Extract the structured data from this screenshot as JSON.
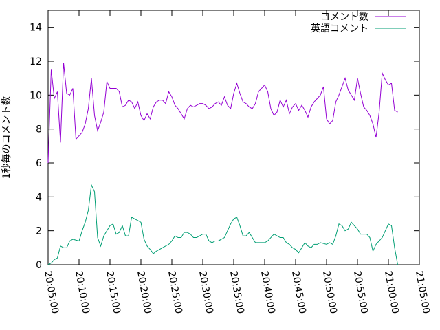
{
  "chart_data": {
    "type": "line",
    "y_label": "1秒毎のコメント数",
    "x": [
      "20:05:00",
      "20:05:30",
      "20:06:00",
      "20:06:30",
      "20:07:00",
      "20:07:30",
      "20:08:00",
      "20:08:30",
      "20:09:00",
      "20:09:30",
      "20:10:00",
      "20:10:30",
      "20:11:00",
      "20:11:30",
      "20:12:00",
      "20:12:30",
      "20:13:00",
      "20:13:30",
      "20:14:00",
      "20:14:30",
      "20:15:00",
      "20:15:30",
      "20:16:00",
      "20:16:30",
      "20:17:00",
      "20:17:30",
      "20:18:00",
      "20:18:30",
      "20:19:00",
      "20:19:30",
      "20:20:00",
      "20:20:30",
      "20:21:00",
      "20:21:30",
      "20:22:00",
      "20:22:30",
      "20:23:00",
      "20:23:30",
      "20:24:00",
      "20:24:30",
      "20:25:00",
      "20:25:30",
      "20:26:00",
      "20:26:30",
      "20:27:00",
      "20:27:30",
      "20:28:00",
      "20:28:30",
      "20:29:00",
      "20:29:30",
      "20:30:00",
      "20:30:30",
      "20:31:00",
      "20:31:30",
      "20:32:00",
      "20:32:30",
      "20:33:00",
      "20:33:30",
      "20:34:00",
      "20:34:30",
      "20:35:00",
      "20:35:30",
      "20:36:00",
      "20:36:30",
      "20:37:00",
      "20:37:30",
      "20:38:00",
      "20:38:30",
      "20:39:00",
      "20:39:30",
      "20:40:00",
      "20:40:30",
      "20:41:00",
      "20:41:30",
      "20:42:00",
      "20:42:30",
      "20:43:00",
      "20:43:30",
      "20:44:00",
      "20:44:30",
      "20:45:00",
      "20:45:30",
      "20:46:00",
      "20:46:30",
      "20:47:00",
      "20:47:30",
      "20:48:00",
      "20:48:30",
      "20:49:00",
      "20:49:30",
      "20:50:00",
      "20:50:30",
      "20:51:00",
      "20:51:30",
      "20:52:00",
      "20:52:30",
      "20:53:00",
      "20:53:30",
      "20:54:00",
      "20:54:30",
      "20:55:00",
      "20:55:30",
      "20:56:00",
      "20:56:30",
      "20:57:00",
      "20:57:30",
      "20:58:00",
      "20:58:30",
      "20:59:00",
      "20:59:30",
      "21:00:00",
      "21:00:30",
      "21:01:00",
      "21:01:30"
    ],
    "series": [
      {
        "name": "コメント数",
        "color": "#9400d3",
        "values": [
          6.0,
          11.5,
          9.8,
          10.2,
          7.2,
          11.9,
          10.1,
          10.0,
          10.4,
          7.4,
          7.6,
          7.8,
          8.3,
          9.2,
          11.0,
          8.8,
          7.9,
          8.4,
          9.0,
          10.8,
          10.4,
          10.4,
          10.4,
          10.2,
          9.3,
          9.4,
          9.7,
          9.6,
          9.2,
          9.6,
          8.8,
          8.5,
          8.9,
          8.6,
          9.3,
          9.6,
          9.7,
          9.7,
          9.5,
          10.2,
          9.9,
          9.4,
          9.2,
          8.9,
          8.6,
          9.2,
          9.4,
          9.3,
          9.4,
          9.5,
          9.5,
          9.4,
          9.2,
          9.3,
          9.5,
          9.6,
          9.4,
          9.9,
          9.4,
          9.2,
          10.1,
          10.7,
          10.1,
          9.6,
          9.5,
          9.3,
          9.2,
          9.5,
          10.2,
          10.4,
          10.6,
          10.2,
          9.2,
          8.8,
          9.0,
          9.7,
          9.3,
          9.7,
          8.9,
          9.3,
          9.5,
          9.1,
          9.4,
          9.1,
          8.7,
          9.3,
          9.6,
          9.8,
          10.0,
          10.5,
          8.6,
          8.3,
          8.5,
          9.6,
          10.0,
          10.5,
          11.0,
          10.3,
          10.0,
          9.7,
          11.0,
          10.1,
          9.3,
          9.1,
          8.8,
          8.3,
          7.5,
          9.0,
          11.3,
          10.9,
          10.6,
          10.7,
          9.1,
          9.0
        ]
      },
      {
        "name": "英語コメント",
        "color": "#009e73",
        "values": [
          0.0,
          0.1,
          0.3,
          0.4,
          1.1,
          1.0,
          1.0,
          1.4,
          1.5,
          1.45,
          1.4,
          2.0,
          2.5,
          3.2,
          4.7,
          4.3,
          1.6,
          1.1,
          1.7,
          2.0,
          2.3,
          2.4,
          1.8,
          1.9,
          2.3,
          1.7,
          1.7,
          2.8,
          2.7,
          2.6,
          2.5,
          1.5,
          1.1,
          0.9,
          0.65,
          0.8,
          0.9,
          1.0,
          1.1,
          1.2,
          1.4,
          1.7,
          1.6,
          1.6,
          1.9,
          1.9,
          1.8,
          1.6,
          1.6,
          1.7,
          1.8,
          1.8,
          1.4,
          1.3,
          1.4,
          1.4,
          1.5,
          1.6,
          2.0,
          2.4,
          2.7,
          2.8,
          2.3,
          1.7,
          1.7,
          1.9,
          1.6,
          1.3,
          1.3,
          1.3,
          1.3,
          1.4,
          1.6,
          1.8,
          1.7,
          1.6,
          1.6,
          1.3,
          1.2,
          1.0,
          0.9,
          0.7,
          1.0,
          1.3,
          1.1,
          1.0,
          1.2,
          1.2,
          1.3,
          1.25,
          1.2,
          1.3,
          1.2,
          1.7,
          2.4,
          2.3,
          2.0,
          2.1,
          2.5,
          2.3,
          2.1,
          1.8,
          1.8,
          1.8,
          1.6,
          0.8,
          1.2,
          1.4,
          1.6,
          2.0,
          2.4,
          2.3,
          1.0,
          0.0
        ]
      }
    ],
    "xlim": [
      "20:05:00",
      "21:05:00"
    ],
    "xticks": [
      "20:05:00",
      "20:10:00",
      "20:15:00",
      "20:20:00",
      "20:25:00",
      "20:30:00",
      "20:35:00",
      "20:40:00",
      "20:45:00",
      "20:50:00",
      "20:55:00",
      "21:00:00",
      "21:05:00"
    ],
    "ylim": [
      0,
      15
    ],
    "yticks": [
      0,
      2,
      4,
      6,
      8,
      10,
      12,
      14
    ],
    "grid": false,
    "legend": "top-right"
  }
}
